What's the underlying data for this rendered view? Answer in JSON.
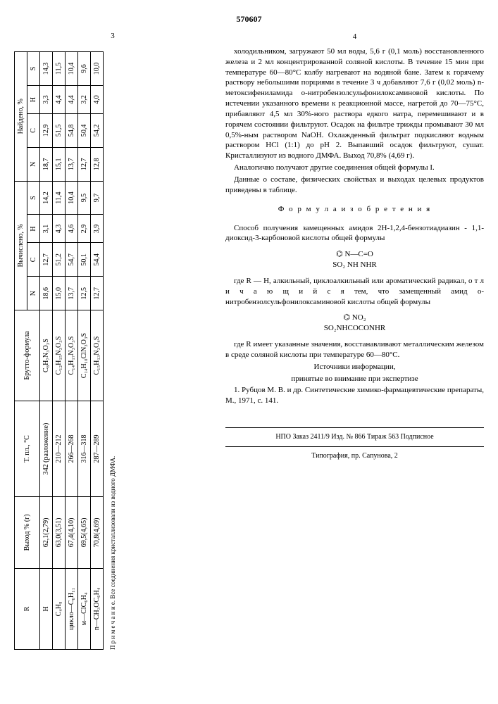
{
  "doc_number": "570607",
  "page_left": "3",
  "page_right": "4",
  "table": {
    "headers_top": [
      "R",
      "Выход % (г)",
      "Т. пл., °С",
      "Брутто-формула"
    ],
    "group_calc": "Вычислено, %",
    "group_found": "Найдено, %",
    "sub_headers": [
      "N",
      "C",
      "H",
      "S"
    ],
    "rows": [
      {
        "r": "H",
        "yield": "62,1(2,79)",
        "mp": "342 (разложение)",
        "formula": "C₈H₇N₃O₃S",
        "cN": "18,6",
        "cC": "12,7",
        "cH": "3,1",
        "cS": "14,2",
        "fN": "18,7",
        "fC": "12,9",
        "fH": "3,3",
        "fS": "14,3"
      },
      {
        "r": "C₄H₉",
        "yield": "63,0(3,51)",
        "mp": "210—212",
        "formula": "C₁₂H₁₅N₃O₃S",
        "cN": "15,0",
        "cC": "51,2",
        "cH": "4,3",
        "cS": "11,4",
        "fN": "15,1",
        "fC": "51,5",
        "fH": "4,4",
        "fS": "11,5"
      },
      {
        "r": "цикло—C₆H₁₁",
        "yield": "67,4(4,10)",
        "mp": "266—268",
        "formula": "C₁₄H₁₇N₃O₃S",
        "cN": "13,7",
        "cC": "54,7",
        "cH": "4,6",
        "cS": "10,4",
        "fN": "13,7",
        "fC": "54,8",
        "fH": "4,4",
        "fS": "10,4"
      },
      {
        "r": "м—ClC₆H₄",
        "yield": "69,5(4,65)",
        "mp": "316—318",
        "formula": "C₁₄H₁₀ClN₃O₃S",
        "cN": "12,5",
        "cC": "50,1",
        "cH": "2,9",
        "cS": "9,5",
        "fN": "12,7",
        "fC": "50,4",
        "fH": "3,2",
        "fS": "9,6"
      },
      {
        "r": "n—CH₃OC₆H₄",
        "yield": "70,8(4,69)",
        "mp": "287—289",
        "formula": "C₁₅H₁₃N₃O₄S",
        "cN": "12,7",
        "cC": "54,4",
        "cH": "3,9",
        "cS": "9,7",
        "fN": "12,8",
        "fC": "54,2",
        "fH": "4,0",
        "fS": "10,0"
      }
    ],
    "footnote": "П р и м е ч а н и е. Все соединения кристаллизовали из водного ДМФА."
  },
  "body": {
    "p1": "холодильником, загружают 50 мл воды, 5,6 г (0,1 моль) восстановленного железа и 2 мл концентрированной соляной кислоты. В течение 15 мин при температуре 60—80°С колбу нагревают на водяной бане. Затем к горячему раствору небольшими порциями в течение 3 ч добавляют 7,6 г (0,02 моль) n-метоксифениламида о-нитробензолсульфонилоксаминовой кислоты. По истечении указанного времени к реакционной массе, нагретой до 70—75°С, прибавляют 4,5 мл 30%-ного раствора едкого натра, перемешивают и в горячем состоянии фильтруют. Осадок на фильтре трижды промывают 30 мл 0,5%-ным раствором NaOH. Охлажденный фильтрат подкисляют водным раствором HCl (1:1) до pH 2. Выпавший осадок фильтруют, сушат. Кристаллизуют из водного ДМФА. Выход 70,8% (4,69 г).",
    "p2": "Аналогично получают другие соединения общей формулы I.",
    "p3": "Данные о составе, физических свойствах и выходах целевых продуктов приведены в таблице.",
    "claims_title": "Ф о р м у л а  и з о б р е т е н и я",
    "p4": "Способ получения замещенных амидов 2H-1,2,4-бензотиадиазин - 1,1-диоксид-3-карбоновой кислоты общей формулы",
    "p5": "где R — H, алкильный, циклоалкильный или ароматический радикал, о т л и ч а ю щ и й с я тем, что замещенный амид о-нитробензолсульфонилоксаминовой кислоты общей формулы",
    "p6": "где R имеет указанные значения, восстанавливают металлическим железом в среде соляной кислоты при температуре 60—80°С.",
    "sources_title": "Источники информации,",
    "sources_sub": "принятые во внимание при экспертизе",
    "ref1": "1. Рубцов М. В. и др. Синтетические химико-фармацевтические препараты, М., 1971, с. 141."
  },
  "line_nums": [
    "5",
    "10",
    "15",
    "20",
    "25",
    "30",
    "35",
    "40",
    "45",
    "50",
    "55",
    "60",
    "65"
  ],
  "footer": {
    "line1": "НПО Заказ 2411/9 Изд. № 866 Тираж 563 Подписное",
    "line2": "Типография, пр. Сапунова, 2"
  },
  "formula1_lines": [
    "⌬ N—C=O",
    "  SO₂ NH  NHR"
  ],
  "formula2_lines": [
    "⌬ NO₂",
    "  SO₂NHCOCONHR"
  ]
}
